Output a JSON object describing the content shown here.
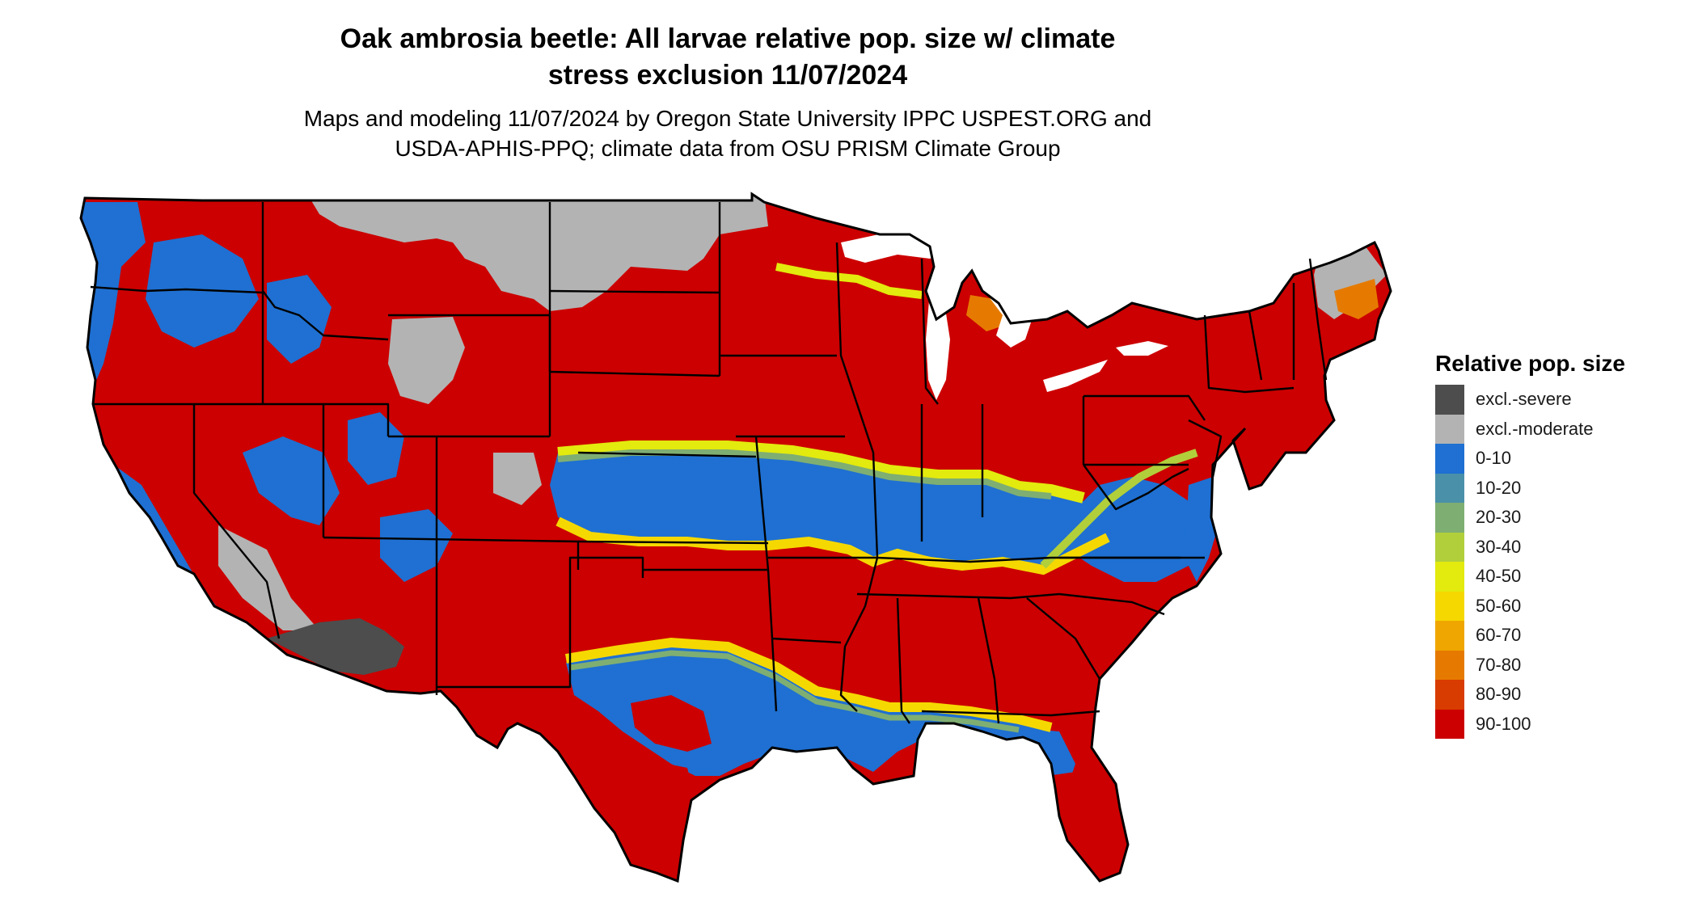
{
  "title": {
    "line1": "Oak ambrosia beetle: All larvae relative pop. size w/ climate",
    "line2": "stress exclusion 11/07/2024"
  },
  "subtitle": {
    "line1": "Maps and modeling 11/07/2024 by Oregon State University IPPC USPEST.ORG and",
    "line2": "USDA-APHIS-PPQ; climate data from OSU PRISM Climate Group"
  },
  "legend": {
    "title": "Relative pop. size",
    "items": [
      {
        "label": "excl.-severe",
        "color": "#4d4d4d"
      },
      {
        "label": "excl.-moderate",
        "color": "#b3b3b3"
      },
      {
        "label": "0-10",
        "color": "#1f70d2"
      },
      {
        "label": "10-20",
        "color": "#4a90a8"
      },
      {
        "label": "20-30",
        "color": "#7fae72"
      },
      {
        "label": "30-40",
        "color": "#b1cf3b"
      },
      {
        "label": "40-50",
        "color": "#e3ea0d"
      },
      {
        "label": "50-60",
        "color": "#f5d800"
      },
      {
        "label": "60-70",
        "color": "#efa600"
      },
      {
        "label": "70-80",
        "color": "#e67a00"
      },
      {
        "label": "80-90",
        "color": "#d83c00"
      },
      {
        "label": "90-100",
        "color": "#cc0000"
      }
    ]
  }
}
